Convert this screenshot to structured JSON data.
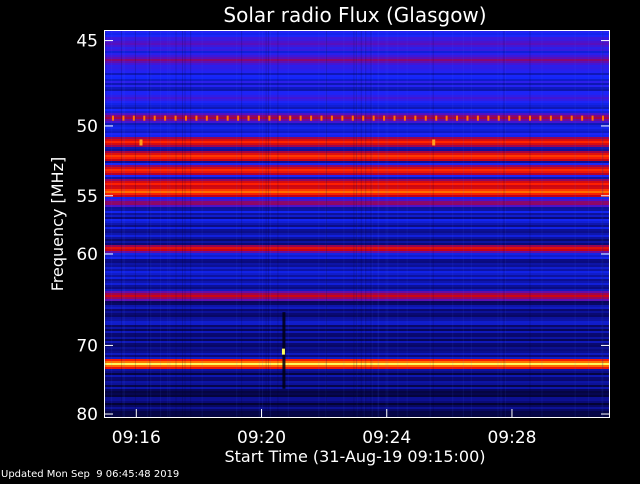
{
  "chart_data": {
    "type": "heatmap",
    "title": "Solar radio Flux (Glasgow)",
    "xlabel": "Start Time (31-Aug-19 09:15:00)",
    "ylabel": "Frequency [MHz]",
    "x_range_minutes_after_start": [
      0,
      16.1
    ],
    "x_ticks": [
      {
        "label": "09:16",
        "minutes_after_start": 1
      },
      {
        "label": "09:20",
        "minutes_after_start": 5
      },
      {
        "label": "09:24",
        "minutes_after_start": 9
      },
      {
        "label": "09:28",
        "minutes_after_start": 13
      }
    ],
    "ylim": [
      44.5,
      80.5
    ],
    "y_ticks": [
      45,
      50,
      55,
      60,
      70,
      80
    ],
    "y_scale": "reciprocal",
    "colormap": {
      "name": "blue-red-yellow",
      "stops": [
        "#000010",
        "#0a0a78",
        "#1428ff",
        "#5010c8",
        "#c00018",
        "#ff2000",
        "#ff7800",
        "#ffff60"
      ]
    },
    "emission_bands": [
      {
        "freq_mhz": 45.1,
        "intensity": 0.45
      },
      {
        "freq_mhz": 46.0,
        "intensity": 0.5
      },
      {
        "freq_mhz": 48.2,
        "intensity": 0.4
      },
      {
        "freq_mhz": 49.4,
        "intensity": 0.55
      },
      {
        "freq_mhz": 51.0,
        "intensity": 0.72
      },
      {
        "freq_mhz": 52.0,
        "intensity": 0.78
      },
      {
        "freq_mhz": 53.0,
        "intensity": 0.76
      },
      {
        "freq_mhz": 54.0,
        "intensity": 0.72
      },
      {
        "freq_mhz": 54.6,
        "intensity": 0.86
      },
      {
        "freq_mhz": 55.5,
        "intensity": 0.55
      },
      {
        "freq_mhz": 59.4,
        "intensity": 0.68
      },
      {
        "freq_mhz": 64.1,
        "intensity": 0.6
      },
      {
        "freq_mhz": 72.3,
        "intensity": 1.0
      }
    ],
    "periodic_spikes": {
      "freq_mhz": 49.5,
      "count": 48,
      "intensity": 0.85
    },
    "bursts": [
      {
        "minutes_after_start": 1.15,
        "freq_mhz": 51.1,
        "intensity": 0.9
      },
      {
        "minutes_after_start": 10.5,
        "freq_mhz": 51.1,
        "intensity": 0.9
      },
      {
        "minutes_after_start": 5.7,
        "freq_mhz": 70.8,
        "intensity": 1.0
      }
    ],
    "dark_stripe": {
      "minutes_after_start": 5.7,
      "freq_range_mhz": [
        66,
        76
      ]
    },
    "grid": false,
    "legend": "none"
  },
  "footer": {
    "updated": "Updated Mon Sep  9 06:45:48 2019"
  }
}
